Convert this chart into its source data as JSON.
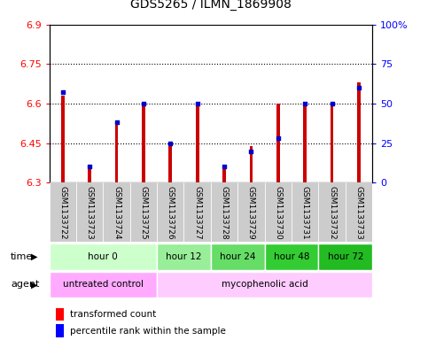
{
  "title": "GDS5265 / ILMN_1869908",
  "samples": [
    "GSM1133722",
    "GSM1133723",
    "GSM1133724",
    "GSM1133725",
    "GSM1133726",
    "GSM1133727",
    "GSM1133728",
    "GSM1133729",
    "GSM1133730",
    "GSM1133731",
    "GSM1133732",
    "GSM1133733"
  ],
  "red_values": [
    6.63,
    6.35,
    6.53,
    6.6,
    6.45,
    6.6,
    6.35,
    6.44,
    6.6,
    6.6,
    6.6,
    6.68
  ],
  "blue_values": [
    57,
    10,
    38,
    50,
    25,
    50,
    10,
    20,
    28,
    50,
    50,
    60
  ],
  "ylim_left": [
    6.3,
    6.9
  ],
  "ylim_right": [
    0,
    100
  ],
  "yticks_left": [
    6.3,
    6.45,
    6.6,
    6.75,
    6.9
  ],
  "yticks_right": [
    0,
    25,
    50,
    75,
    100
  ],
  "ytick_labels_left": [
    "6.3",
    "6.45",
    "6.6",
    "6.75",
    "6.9"
  ],
  "ytick_labels_right": [
    "0",
    "25",
    "50",
    "75",
    "100%"
  ],
  "grid_values": [
    6.45,
    6.6,
    6.75
  ],
  "bar_color": "#cc0000",
  "dot_color": "#0000cc",
  "bar_base": 6.3,
  "bar_width": 0.12,
  "time_groups": [
    {
      "label": "hour 0",
      "start": 0,
      "end": 3,
      "color": "#ccffcc"
    },
    {
      "label": "hour 12",
      "start": 4,
      "end": 5,
      "color": "#99ee99"
    },
    {
      "label": "hour 24",
      "start": 6,
      "end": 7,
      "color": "#66dd66"
    },
    {
      "label": "hour 48",
      "start": 8,
      "end": 9,
      "color": "#33cc33"
    },
    {
      "label": "hour 72",
      "start": 10,
      "end": 11,
      "color": "#22bb22"
    }
  ],
  "agent_groups": [
    {
      "label": "untreated control",
      "start": 0,
      "end": 3,
      "color": "#ffaaff"
    },
    {
      "label": "mycophenolic acid",
      "start": 4,
      "end": 11,
      "color": "#ffccff"
    }
  ],
  "sample_bg_color": "#cccccc",
  "legend_red_label": "transformed count",
  "legend_blue_label": "percentile rank within the sample",
  "time_label": "time",
  "agent_label": "agent",
  "fig_width": 4.83,
  "fig_height": 3.93,
  "dpi": 100
}
